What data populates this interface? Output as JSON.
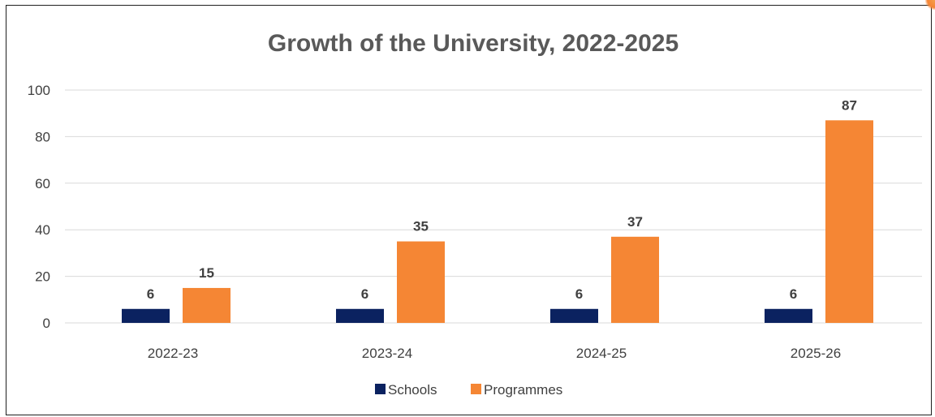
{
  "colors": {
    "schools": "#0b2260",
    "programmes": "#f58634",
    "grid": "#d9d9d9",
    "text": "#404040",
    "title": "#595959"
  },
  "chart_data": {
    "type": "bar",
    "title": "Growth of the University, 2022-2025",
    "xlabel": "",
    "ylabel": "",
    "categories": [
      "2022-23",
      "2023-24",
      "2024-25",
      "2025-26"
    ],
    "series": [
      {
        "name": "Schools",
        "values": [
          6,
          6,
          6,
          6
        ]
      },
      {
        "name": "Programmes",
        "values": [
          15,
          35,
          37,
          87
        ]
      }
    ],
    "ylim": [
      0,
      100
    ],
    "yticks": [
      0,
      20,
      40,
      60,
      80,
      100
    ],
    "grid": true,
    "legend_position": "bottom",
    "data_labels": true
  }
}
